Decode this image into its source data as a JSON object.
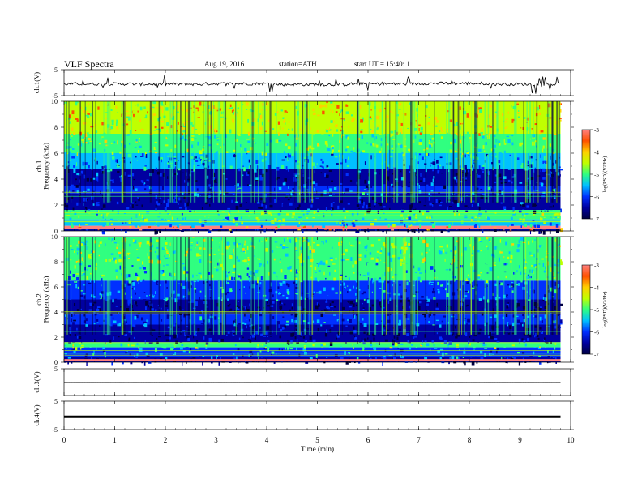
{
  "header": {
    "title": "VLF  Spectra",
    "date": "Aug.19, 2016",
    "station": "station=ATH",
    "start_ut": "start  UT  =    15:40: 1"
  },
  "colors": {
    "colormap": [
      "#000040",
      "#0000a0",
      "#0030ff",
      "#00c0ff",
      "#30ff80",
      "#c0ff00",
      "#ffd000",
      "#ff5000",
      "#ff8080",
      "#ffffff"
    ]
  },
  "chart_data": [
    {
      "type": "line",
      "id": "ch1-waveform",
      "ylabel": "ch.1(V)",
      "ylim": [
        -5,
        5
      ],
      "yticks": [
        "5",
        "-5"
      ],
      "xlim": [
        0,
        10
      ],
      "series": [
        {
          "values": [
            -0.5,
            -0.6,
            -0.4,
            -0.7,
            -0.5,
            -0.3,
            -0.6,
            -0.5
          ]
        }
      ]
    },
    {
      "type": "heatmap",
      "id": "ch1-spectrogram",
      "ylabel": "ch.1\nFrequency  (kHz)",
      "ylim": [
        0,
        10
      ],
      "yticks": [
        "0",
        "2",
        "4",
        "6",
        "8",
        "10"
      ],
      "xlim": [
        0,
        9.8
      ],
      "colorbar": {
        "label": "log(PSD)(V²/Hz)",
        "range": [
          -7,
          -3
        ],
        "ticks": [
          "-3",
          "-4",
          "-5",
          "-6",
          "-7"
        ]
      },
      "bands_log_psd": [
        {
          "f": [
            0.0,
            0.2
          ],
          "v": -6.6
        },
        {
          "f": [
            0.2,
            0.4
          ],
          "v": -3.2
        },
        {
          "f": [
            0.4,
            0.9
          ],
          "v": -5.3
        },
        {
          "f": [
            0.9,
            1.6
          ],
          "v": -5.0
        },
        {
          "f": [
            1.6,
            2.9
          ],
          "v": -6.5
        },
        {
          "f": [
            2.9,
            3.5
          ],
          "v": -5.9
        },
        {
          "f": [
            3.5,
            4.8
          ],
          "v": -6.3
        },
        {
          "f": [
            4.8,
            6.0
          ],
          "v": -5.7
        },
        {
          "f": [
            6.0,
            7.5
          ],
          "v": -4.9
        },
        {
          "f": [
            7.5,
            10.0
          ],
          "v": -4.3
        }
      ]
    },
    {
      "type": "heatmap",
      "id": "ch2-spectrogram",
      "ylabel": "ch.2\nFrequency  (kHz)",
      "ylim": [
        0,
        10
      ],
      "yticks": [
        "0",
        "2",
        "4",
        "6",
        "8",
        "10"
      ],
      "xlim": [
        0,
        9.8
      ],
      "colorbar": {
        "label": "log(PSD)(V²/Hz)",
        "range": [
          -7,
          -3
        ],
        "ticks": [
          "-3",
          "-4",
          "-5",
          "-6",
          "-7"
        ]
      },
      "bands_log_psd": [
        {
          "f": [
            0.0,
            0.4
          ],
          "v": -6.7
        },
        {
          "f": [
            0.4,
            1.2
          ],
          "v": -5.8
        },
        {
          "f": [
            1.2,
            1.6
          ],
          "v": -5.0
        },
        {
          "f": [
            1.6,
            3.0
          ],
          "v": -6.6
        },
        {
          "f": [
            3.0,
            3.8
          ],
          "v": -6.0
        },
        {
          "f": [
            3.8,
            5.0
          ],
          "v": -6.6
        },
        {
          "f": [
            5.0,
            6.5
          ],
          "v": -5.8
        },
        {
          "f": [
            6.5,
            8.0
          ],
          "v": -5.2
        },
        {
          "f": [
            8.0,
            10.0
          ],
          "v": -4.8
        }
      ]
    },
    {
      "type": "line",
      "id": "ch3-waveform",
      "ylabel": "ch.3(V)",
      "ylim": [
        -5,
        5
      ],
      "yticks": [
        "5"
      ],
      "xlim": [
        0,
        10
      ],
      "series": [
        {
          "values": [
            0,
            0,
            0,
            0,
            0,
            0,
            0,
            0
          ]
        }
      ]
    },
    {
      "type": "line",
      "id": "ch4-waveform",
      "ylabel": "ch.4(V)",
      "ylim": [
        -5,
        5
      ],
      "yticks": [
        "5",
        "-5"
      ],
      "xlim": [
        0,
        10
      ],
      "series": [
        {
          "values": [
            -0.5,
            -0.5,
            -0.5,
            -0.5,
            -0.5,
            -0.5,
            -0.5,
            -0.5
          ]
        }
      ]
    }
  ],
  "xaxis": {
    "label": "Time  (min)",
    "range": [
      0,
      10
    ],
    "ticks": [
      "0",
      "1",
      "2",
      "3",
      "4",
      "5",
      "6",
      "7",
      "8",
      "9",
      "10"
    ]
  }
}
